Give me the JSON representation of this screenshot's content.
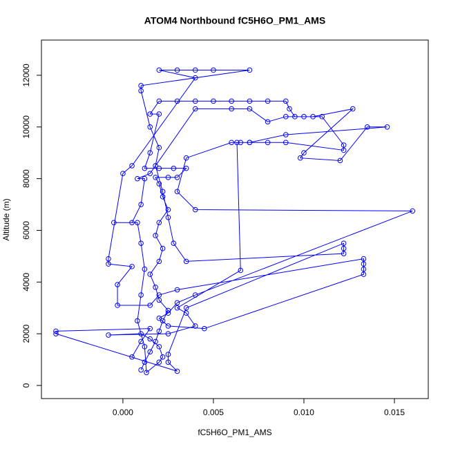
{
  "chart_data": {
    "type": "line",
    "title": "ATOM4 Northbound fC5H6O_PM1_AMS",
    "xlabel": "fC5H6O_PM1_AMS",
    "ylabel": "Altitude (m)",
    "color": "#0000ff",
    "markers": true,
    "grid": false,
    "xlim": [
      -0.0045,
      0.01687
    ],
    "ylim": [
      -508,
      13362
    ],
    "xticks": [
      {
        "value": 0,
        "label": "0.000"
      },
      {
        "value": 0.005,
        "label": "0.005"
      },
      {
        "value": 0.01,
        "label": "0.010"
      },
      {
        "value": 0.015,
        "label": "0.015"
      }
    ],
    "yticks": [
      0,
      2000,
      4000,
      6000,
      8000,
      10000,
      12000
    ],
    "x": [
      0.001,
      0.0012,
      0.0015,
      0.0018,
      0.002,
      0.0022,
      0.0025,
      0.002,
      0.0018,
      0.0015,
      0.002,
      0.0022,
      0.0018,
      0.002,
      0.0025,
      0.0022,
      0.002,
      0.0018,
      0.0025,
      0.003,
      0.0035,
      0.0028,
      0.002,
      0.0012,
      0.0015,
      0.002,
      0.0015,
      0.002,
      0.003,
      0.004,
      0.005,
      0.006,
      0.007,
      0.008,
      0.009,
      0.0092,
      0.0095,
      0.01,
      0.011,
      0.0122,
      0.0122,
      0.009,
      0.008,
      0.007,
      0.0065,
      0.0063,
      0.0065,
      0.003,
      0.0035,
      0.004,
      0.0025,
      -0.0008,
      0.001,
      0.0015,
      0.002,
      0.0022,
      0.002,
      0.0013,
      0.0012,
      0.0008,
      0.001,
      0.0012,
      0.001,
      0.0008,
      -0.0005,
      0.0005,
      0.001,
      0.0012,
      0.0008,
      0.0015,
      0.004,
      0.006,
      0.007,
      0.008,
      0.009,
      0.0105,
      0.0127,
      0.01,
      0.0098,
      0.012,
      0.0135,
      0.0146,
      0.009,
      0.007,
      0.006,
      0.0035,
      0.003,
      0.004,
      0.016,
      0.004,
      0.003,
      0.0025,
      0.002,
      0.0025,
      0.0045,
      0.0133,
      0.0133,
      0.0133,
      0.0133,
      0.003,
      0.002,
      0.0015,
      -0.0003,
      -0.0003,
      0.0005,
      -0.0008,
      -0.0008,
      0.0,
      0.0005,
      0.004,
      0.002,
      0.003,
      0.004,
      0.005,
      0.007,
      0.001,
      0.001,
      0.0015,
      0.002,
      0.0018,
      0.0022,
      0.0025,
      0.0028,
      0.0035,
      0.0122,
      0.0122,
      0.0122,
      0.0035,
      0.0025,
      0.0025,
      0.003,
      -0.0037,
      -0.0037,
      0.0015,
      0.001,
      0.0005
    ],
    "values": [
      600,
      900,
      1300,
      1700,
      2100,
      2500,
      2900,
      3300,
      3800,
      4300,
      4800,
      5300,
      5800,
      6300,
      6800,
      7300,
      7800,
      8050,
      8050,
      8050,
      8400,
      8400,
      8400,
      8400,
      9000,
      10500,
      10500,
      11000,
      11000,
      11000,
      11000,
      11000,
      11000,
      11000,
      11000,
      10700,
      10400,
      10400,
      10400,
      9300,
      9100,
      9400,
      9400,
      9400,
      9400,
      9400,
      4450,
      3000,
      2800,
      2300,
      2000,
      1950,
      2000,
      1800,
      1500,
      1100,
      900,
      500,
      1500,
      2500,
      3500,
      4500,
      5500,
      6300,
      6300,
      6300,
      7000,
      8000,
      8000,
      8200,
      10700,
      10700,
      10700,
      10200,
      10400,
      10400,
      10700,
      9000,
      8800,
      8700,
      10000,
      10000,
      9700,
      9400,
      9400,
      8800,
      7500,
      6800,
      6750,
      3500,
      3200,
      2800,
      2600,
      2300,
      2200,
      4300,
      4500,
      4700,
      4900,
      3700,
      3500,
      3100,
      3100,
      3900,
      4600,
      4700,
      4900,
      8200,
      8500,
      11900,
      12200,
      12200,
      12200,
      12200,
      12200,
      11600,
      11400,
      10000,
      9200,
      8500,
      7500,
      6500,
      5500,
      4800,
      5100,
      5300,
      5500,
      3000,
      1200,
      900,
      550,
      2000,
      2100,
      2200,
      1700,
      1100
    ]
  }
}
